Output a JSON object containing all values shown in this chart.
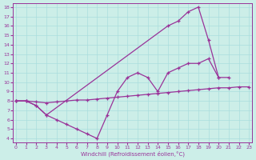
{
  "xlabel": "Windchill (Refroidissement éolien,°C)",
  "bg_color": "#cceee8",
  "line_color": "#993399",
  "grid_color": "#aadddd",
  "xlim": [
    -0.5,
    23.5
  ],
  "ylim": [
    3.5,
    18.5
  ],
  "xticks": [
    0,
    1,
    2,
    3,
    4,
    5,
    6,
    7,
    8,
    9,
    10,
    11,
    12,
    13,
    14,
    15,
    16,
    17,
    18,
    19,
    20,
    21,
    22,
    23
  ],
  "yticks": [
    4,
    5,
    6,
    7,
    8,
    9,
    10,
    11,
    12,
    13,
    14,
    15,
    16,
    17,
    18
  ],
  "line_diagonal_x": [
    0,
    1,
    2,
    3,
    4,
    5,
    6,
    7,
    8,
    9,
    10,
    11,
    12,
    13,
    14,
    15,
    16,
    17,
    18,
    19,
    20,
    21,
    22,
    23
  ],
  "line_diagonal_y": [
    8.0,
    8.0,
    7.9,
    7.8,
    7.9,
    8.0,
    8.1,
    8.1,
    8.2,
    8.3,
    8.4,
    8.5,
    8.6,
    8.7,
    8.8,
    8.9,
    9.0,
    9.1,
    9.2,
    9.3,
    9.4,
    9.4,
    9.5,
    9.5
  ],
  "line_dip_x": [
    0,
    1,
    2,
    3,
    4,
    5,
    6,
    7,
    8,
    9,
    10,
    11,
    12,
    13,
    14,
    15,
    16,
    17,
    18,
    19,
    20
  ],
  "line_dip_y": [
    8.0,
    8.0,
    7.5,
    6.5,
    6.0,
    5.5,
    5.0,
    4.5,
    4.0,
    6.5,
    9.0,
    10.5,
    11.0,
    10.5,
    9.0,
    11.0,
    11.5,
    12.0,
    12.0,
    12.5,
    10.5
  ],
  "line_peak_x": [
    0,
    1,
    2,
    3,
    15,
    16,
    17,
    18,
    19,
    20,
    21
  ],
  "line_peak_y": [
    8.0,
    8.0,
    7.5,
    6.5,
    16.0,
    16.5,
    17.5,
    18.0,
    14.5,
    10.5,
    10.5
  ]
}
